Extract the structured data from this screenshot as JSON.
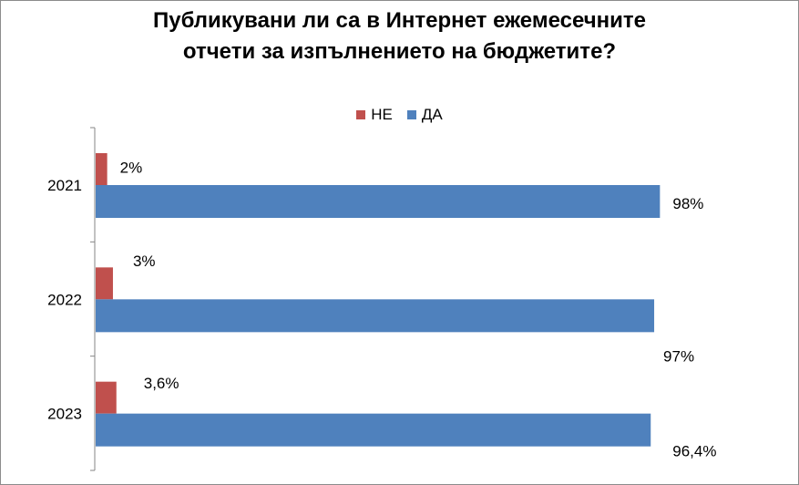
{
  "chart_data": {
    "type": "bar",
    "orientation": "horizontal",
    "title": [
      "Публикувани ли са в Интернет ежемесечните",
      "отчети за изпълнението на бюджетите?"
    ],
    "categories": [
      "2021",
      "2022",
      "2023"
    ],
    "series": [
      {
        "name": "НЕ",
        "color": "#C0504D",
        "values": [
          2,
          3,
          3.6
        ],
        "labels": [
          "2%",
          "3%",
          "3,6%"
        ]
      },
      {
        "name": "ДА",
        "color": "#4F81BD",
        "values": [
          98,
          97,
          96.4
        ],
        "labels": [
          "98%",
          "97%",
          "96,4%"
        ]
      }
    ],
    "xlim": [
      0,
      100
    ],
    "legend_position": "top",
    "grid": false
  }
}
